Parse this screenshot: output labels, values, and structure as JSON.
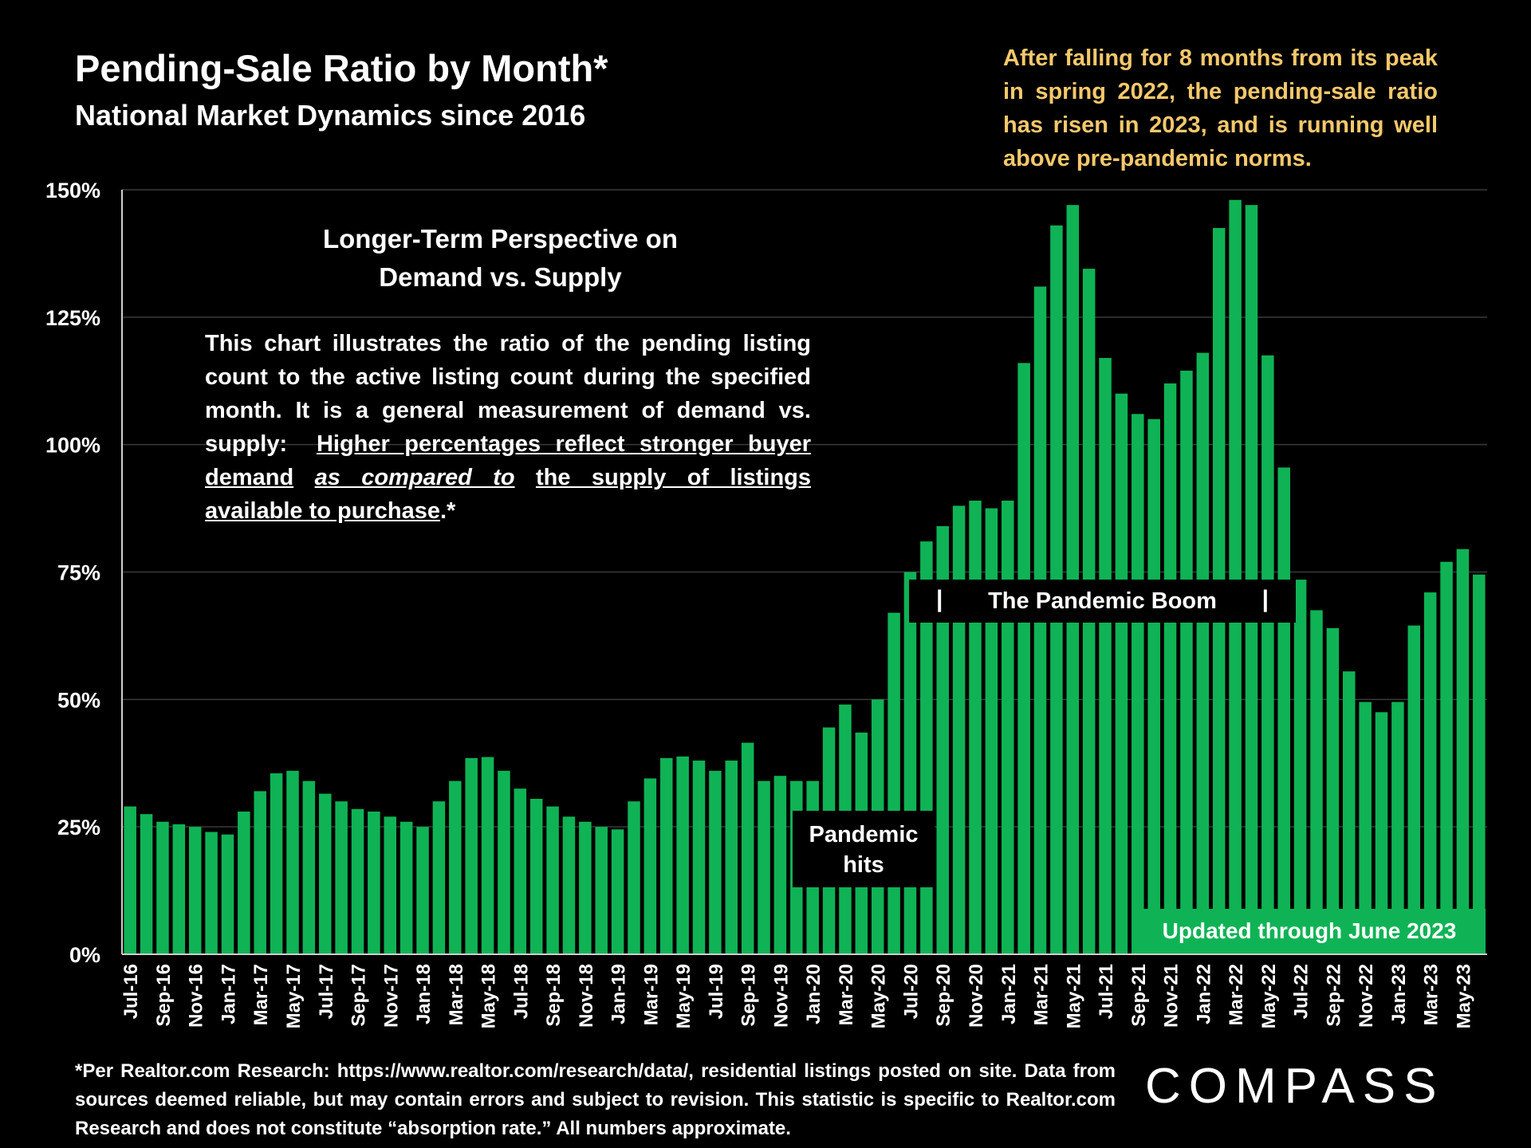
{
  "header": {
    "title": "Pending-Sale Ratio by Month*",
    "subtitle": "National Market Dynamics since 2016"
  },
  "callout": "After falling for 8 months from its peak in spring 2022, the pending-sale ratio has risen in 2023, and is running well above pre-pandemic norms.",
  "perspective": {
    "line1": "Longer-Term Perspective on",
    "line2": "Demand vs. Supply"
  },
  "description": {
    "intro": "This chart illustrates the ratio of the pending listing count to the active listing count during the specified month. It is a general measurement of demand vs. supply:",
    "u1": "Higher percentages reflect stronger buyer demand",
    "italic": "as compared to",
    "u2": "the supply of listings available to purchase",
    "tail": ".*"
  },
  "annotations": {
    "boom": "The Pandemic Boom",
    "bracket_left": "|",
    "bracket_right": "|",
    "hits_line1": "Pandemic",
    "hits_line2": "hits",
    "updated": "Updated through June 2023"
  },
  "footnote": "*Per Realtor.com Research: https://www.realtor.com/research/data/, residential listings posted on site. Data from sources deemed reliable, but may contain errors and subject to revision. This statistic is specific to Realtor.com Research and does not constitute “absorption rate.” All numbers approximate.",
  "logo": {
    "text": "COMPASS"
  },
  "colors": {
    "bar": "#0fb355",
    "callout": "#f5c86b",
    "grid": "#3a3a3a",
    "background": "#000000"
  },
  "chart_data": {
    "type": "bar",
    "title": "Pending-Sale Ratio by Month*",
    "xlabel": "",
    "ylabel": "",
    "ylim": [
      0,
      150
    ],
    "y_ticks": [
      0,
      25,
      50,
      75,
      100,
      125,
      150
    ],
    "y_tick_labels": [
      "0%",
      "25%",
      "50%",
      "75%",
      "100%",
      "125%",
      "150%"
    ],
    "grid": true,
    "categories": [
      "Jul-16",
      "Aug-16",
      "Sep-16",
      "Oct-16",
      "Nov-16",
      "Dec-16",
      "Jan-17",
      "Feb-17",
      "Mar-17",
      "Apr-17",
      "May-17",
      "Jun-17",
      "Jul-17",
      "Aug-17",
      "Sep-17",
      "Oct-17",
      "Nov-17",
      "Dec-17",
      "Jan-18",
      "Feb-18",
      "Mar-18",
      "Apr-18",
      "May-18",
      "Jun-18",
      "Jul-18",
      "Aug-18",
      "Sep-18",
      "Oct-18",
      "Nov-18",
      "Dec-18",
      "Jan-19",
      "Feb-19",
      "Mar-19",
      "Apr-19",
      "May-19",
      "Jun-19",
      "Jul-19",
      "Aug-19",
      "Sep-19",
      "Oct-19",
      "Nov-19",
      "Dec-19",
      "Jan-20",
      "Feb-20",
      "Mar-20",
      "Apr-20",
      "May-20",
      "Jun-20",
      "Jul-20",
      "Aug-20",
      "Sep-20",
      "Oct-20",
      "Nov-20",
      "Dec-20",
      "Jan-21",
      "Feb-21",
      "Mar-21",
      "Apr-21",
      "May-21",
      "Jun-21",
      "Jul-21",
      "Aug-21",
      "Sep-21",
      "Oct-21",
      "Nov-21",
      "Dec-21",
      "Jan-22",
      "Feb-22",
      "Mar-22",
      "Apr-22",
      "May-22",
      "Jun-22",
      "Jul-22",
      "Aug-22",
      "Sep-22",
      "Oct-22",
      "Nov-22",
      "Dec-22",
      "Jan-23",
      "Feb-23",
      "Mar-23",
      "Apr-23",
      "May-23",
      "Jun-23"
    ],
    "x_tick_labels": [
      "Jul-16",
      "Sep-16",
      "Nov-16",
      "Jan-17",
      "Mar-17",
      "May-17",
      "Jul-17",
      "Sep-17",
      "Nov-17",
      "Jan-18",
      "Mar-18",
      "May-18",
      "Jul-18",
      "Sep-18",
      "Nov-18",
      "Jan-19",
      "Mar-19",
      "May-19",
      "Jul-19",
      "Sep-19",
      "Nov-19",
      "Jan-20",
      "Mar-20",
      "May-20",
      "Jul-20",
      "Sep-20",
      "Nov-20",
      "Jan-21",
      "Mar-21",
      "May-21",
      "Jul-21",
      "Sep-21",
      "Nov-21",
      "Jan-22",
      "Mar-22",
      "May-22",
      "Jul-22",
      "Sep-22",
      "Nov-22",
      "Jan-23",
      "Mar-23",
      "May-23"
    ],
    "series": [
      {
        "name": "Pending-Sale Ratio",
        "unit": "%",
        "values": [
          29,
          27.5,
          26,
          25.5,
          25,
          24,
          23.5,
          28,
          32,
          35.5,
          36,
          34,
          31.5,
          30,
          28.5,
          28,
          27,
          26,
          25,
          30,
          34,
          38.5,
          38.7,
          36,
          32.5,
          30.5,
          29,
          27,
          26,
          25,
          24.5,
          30,
          34.5,
          38.5,
          38.8,
          38,
          36,
          38,
          41.5,
          34,
          35,
          34,
          34,
          44.5,
          49,
          43.5,
          50,
          67,
          75,
          81,
          84,
          88,
          89,
          87.5,
          89,
          116,
          131,
          143,
          147,
          134.5,
          117,
          110,
          106,
          105,
          112,
          114.5,
          118,
          142.5,
          148,
          147,
          117.5,
          95.5,
          73.5,
          67.5,
          64,
          55.5,
          49.5,
          47.5,
          49.5,
          64.5,
          71,
          77,
          79.5,
          74.5
        ]
      }
    ]
  }
}
